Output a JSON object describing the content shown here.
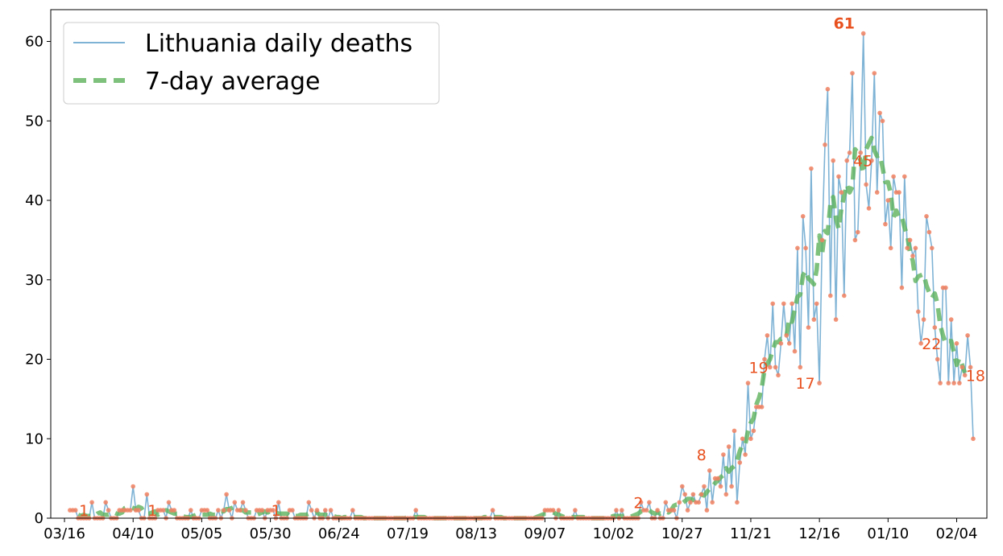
{
  "chart_data": {
    "type": "line",
    "x_dates": [
      "2020-03-16",
      "2020-04-10",
      "2020-05-05",
      "2020-05-30",
      "2020-06-24",
      "2020-07-19",
      "2020-08-13",
      "2020-09-07",
      "2020-10-02",
      "2020-10-27",
      "2020-11-21",
      "2020-12-16",
      "2021-01-10",
      "2021-02-04"
    ],
    "xtick_labels": [
      "03/16",
      "04/10",
      "05/05",
      "05/30",
      "06/24",
      "07/19",
      "08/13",
      "09/07",
      "10/02",
      "10/27",
      "11/21",
      "12/16",
      "01/10",
      "02/04"
    ],
    "yticks": [
      0,
      10,
      20,
      30,
      40,
      50,
      60
    ],
    "ylim": [
      0,
      64
    ],
    "xlim": [
      "2020-03-11",
      "2021-02-15"
    ],
    "grid": false,
    "legend_position": "upper left",
    "colors": {
      "daily_line": "#7fb3d5",
      "average_line": "#5cb25d",
      "markers": "#f08060",
      "annotations": "#e8501e"
    },
    "series": [
      {
        "name": "Lithuania daily deaths",
        "start_date": "2020-03-18",
        "values": [
          1,
          1,
          1,
          0,
          0,
          0,
          0,
          0,
          2,
          0,
          0,
          0,
          0,
          2,
          1,
          0,
          0,
          0,
          1,
          1,
          1,
          1,
          1,
          4,
          1,
          1,
          0,
          0,
          3,
          0,
          0,
          0,
          1,
          1,
          1,
          0,
          2,
          1,
          1,
          0,
          0,
          0,
          0,
          0,
          1,
          0,
          0,
          0,
          1,
          1,
          1,
          0,
          0,
          0,
          1,
          0,
          1,
          3,
          1,
          0,
          2,
          1,
          1,
          2,
          1,
          0,
          0,
          0,
          1,
          1,
          1,
          0,
          1,
          1,
          1,
          0,
          2,
          0,
          0,
          0,
          1,
          1,
          0,
          0,
          0,
          0,
          0,
          2,
          1,
          0,
          1,
          0,
          0,
          1,
          0,
          1,
          0,
          0,
          0,
          0,
          0,
          0,
          0,
          1,
          0,
          0,
          0,
          0,
          0,
          0,
          0,
          0,
          0,
          0,
          0,
          0,
          0,
          0,
          0,
          0,
          0,
          0,
          0,
          0,
          0,
          0,
          1,
          0,
          0,
          0,
          0,
          0,
          0,
          0,
          0,
          0,
          0,
          0,
          0,
          0,
          0,
          0,
          0,
          0,
          0,
          0,
          0,
          0,
          0,
          0,
          0,
          0,
          0,
          0,
          1,
          0,
          0,
          0,
          0,
          0,
          0,
          0,
          0,
          0,
          0,
          0,
          0,
          0,
          0,
          0,
          0,
          0,
          0,
          1,
          1,
          1,
          1,
          0,
          1,
          0,
          0,
          0,
          0,
          0,
          1,
          0,
          0,
          0,
          0,
          0,
          0,
          0,
          0,
          0,
          0,
          0,
          0,
          0,
          0,
          1,
          0,
          1,
          0,
          0,
          0,
          0,
          0,
          0,
          2,
          1,
          1,
          2,
          0,
          0,
          1,
          0,
          0,
          2,
          1,
          1,
          1,
          0,
          2,
          4,
          3,
          1,
          2,
          3,
          2,
          2,
          3,
          4,
          1,
          6,
          2,
          5,
          5,
          4,
          8,
          3,
          9,
          4,
          11,
          2,
          7,
          10,
          8,
          17,
          10,
          11,
          14,
          14,
          14,
          20,
          23,
          19,
          27,
          19,
          18,
          22,
          27,
          23,
          22,
          27,
          21,
          34,
          19,
          38,
          34,
          24,
          44,
          25,
          27,
          17,
          35,
          47,
          54,
          28,
          45,
          25,
          43,
          41,
          28,
          45,
          46,
          56,
          35,
          36,
          46,
          61,
          42,
          39,
          45,
          56,
          41,
          51,
          50,
          37,
          40,
          34,
          43,
          41,
          41,
          29,
          43,
          34,
          35,
          33,
          34,
          26,
          22,
          25,
          38,
          36,
          34,
          24,
          20,
          17,
          29,
          29,
          17,
          25,
          17,
          22,
          17,
          19,
          18,
          23,
          19,
          10
        ]
      },
      {
        "name": "7-day average"
      }
    ],
    "annotations": [
      {
        "text": "1",
        "x": "2020-03-21",
        "y": 1,
        "bold": false
      },
      {
        "text": "1",
        "x": "2020-04-15",
        "y": 1,
        "bold": false
      },
      {
        "text": "1",
        "x": "2020-05-30",
        "y": 1,
        "bold": false
      },
      {
        "text": "2",
        "x": "2020-10-09",
        "y": 2,
        "bold": false
      },
      {
        "text": "8",
        "x": "2020-11-01",
        "y": 8,
        "bold": false
      },
      {
        "text": "19",
        "x": "2020-11-20",
        "y": 19,
        "bold": false
      },
      {
        "text": "17",
        "x": "2020-12-07",
        "y": 17,
        "bold": false
      },
      {
        "text": "61",
        "x": "2020-12-25",
        "y": 61,
        "bold": true
      },
      {
        "text": "45",
        "x": "2020-12-28",
        "y": 45,
        "bold": false
      },
      {
        "text": "22",
        "x": "2021-01-22",
        "y": 22,
        "bold": false
      },
      {
        "text": "18",
        "x": "2021-02-07",
        "y": 18,
        "bold": false
      }
    ]
  }
}
